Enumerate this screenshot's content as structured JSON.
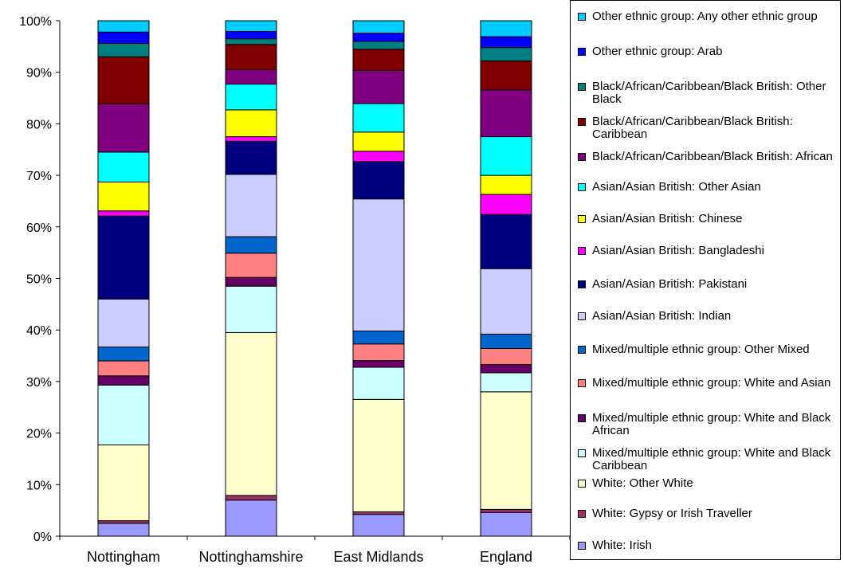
{
  "chart_data": {
    "type": "bar",
    "stacked": true,
    "percent": true,
    "categories": [
      "Nottingham",
      "Nottinghamshire",
      "East Midlands",
      "England"
    ],
    "y_tick_labels": [
      "0%",
      "10%",
      "20%",
      "30%",
      "40%",
      "50%",
      "60%",
      "70%",
      "80%",
      "90%",
      "100%"
    ],
    "ylim": [
      0,
      100
    ],
    "legend_position": "right",
    "series": [
      {
        "name": "White: Irish",
        "color": "#9999ff",
        "values": [
          2.5,
          7.0,
          4.2,
          4.6
        ]
      },
      {
        "name": "White: Gypsy or Irish Traveller",
        "color": "#993366",
        "values": [
          0.5,
          0.9,
          0.5,
          0.6
        ]
      },
      {
        "name": "White: Other White",
        "color": "#ffffcc",
        "values": [
          14.7,
          31.6,
          21.7,
          22.8
        ]
      },
      {
        "name": "Mixed/multiple ethnic group: White and Black Caribbean",
        "color": "#ccffff",
        "values": [
          11.6,
          9.0,
          6.2,
          3.7
        ]
      },
      {
        "name": "Mixed/multiple ethnic group: White and Black African",
        "color": "#660066",
        "values": [
          1.8,
          1.7,
          1.3,
          1.6
        ]
      },
      {
        "name": "Mixed/multiple ethnic group: White and Asian",
        "color": "#ff8080",
        "values": [
          2.9,
          4.7,
          3.2,
          3.1
        ]
      },
      {
        "name": "Mixed/multiple ethnic group: Other Mixed",
        "color": "#0066cc",
        "values": [
          2.7,
          3.2,
          2.5,
          2.8
        ]
      },
      {
        "name": "Asian/Asian British: Indian",
        "color": "#ccccff",
        "values": [
          9.3,
          12.1,
          25.5,
          12.7
        ]
      },
      {
        "name": "Asian/Asian British: Pakistani",
        "color": "#000080",
        "values": [
          16.1,
          6.4,
          7.2,
          10.5
        ]
      },
      {
        "name": "Asian/Asian British: Bangladeshi",
        "color": "#ff00ff",
        "values": [
          1.0,
          0.9,
          2.0,
          3.9
        ]
      },
      {
        "name": "Asian/Asian British: Chinese",
        "color": "#ffff00",
        "values": [
          5.6,
          5.2,
          3.7,
          3.7
        ]
      },
      {
        "name": "Asian/Asian British: Other Asian",
        "color": "#00ffff",
        "values": [
          5.8,
          5.0,
          5.5,
          7.5
        ]
      },
      {
        "name": "Black/African/Caribbean/Black British: African",
        "color": "#800080",
        "values": [
          9.4,
          2.8,
          6.4,
          9.1
        ]
      },
      {
        "name": "Black/African/Caribbean/Black British: Caribbean",
        "color": "#800000",
        "values": [
          9.1,
          4.9,
          4.1,
          5.6
        ]
      },
      {
        "name": "Black/African/Caribbean/Black British: Other Black",
        "color": "#008080",
        "values": [
          2.6,
          1.1,
          1.5,
          2.6
        ]
      },
      {
        "name": "Other ethnic group: Arab",
        "color": "#0000ff",
        "values": [
          2.2,
          1.4,
          1.6,
          2.1
        ]
      },
      {
        "name": "Other ethnic group: Any other ethnic group",
        "color": "#00ccff",
        "values": [
          2.2,
          2.1,
          2.4,
          3.1
        ]
      }
    ],
    "legend_order": [
      16,
      15,
      14,
      13,
      12,
      11,
      10,
      9,
      8,
      7,
      6,
      5,
      4,
      3,
      2,
      1,
      0
    ]
  }
}
